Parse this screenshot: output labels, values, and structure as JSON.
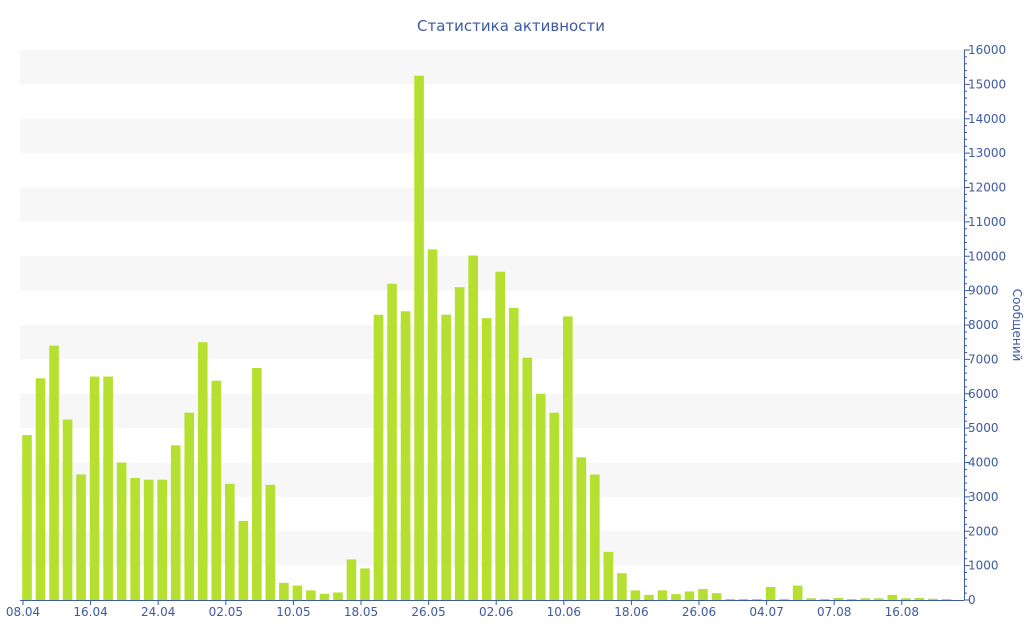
{
  "chart_data": {
    "type": "bar",
    "title": "Статистика активности",
    "ylabel": "Сообщений",
    "xlabel": "",
    "ylim": [
      0,
      16000
    ],
    "y_ticks": [
      "0",
      "1000",
      "2000",
      "3000",
      "4000",
      "5000",
      "6000",
      "7000",
      "8000",
      "9000",
      "10000",
      "11000",
      "12000",
      "13000",
      "14000",
      "15000",
      "16000"
    ],
    "x_tick_labels": [
      {
        "label": "08.04",
        "bar_index": 0
      },
      {
        "label": "16.04",
        "bar_index": 5
      },
      {
        "label": "24.04",
        "bar_index": 10
      },
      {
        "label": "02.05",
        "bar_index": 15
      },
      {
        "label": "10.05",
        "bar_index": 20
      },
      {
        "label": "18.05",
        "bar_index": 25
      },
      {
        "label": "26.05",
        "bar_index": 30
      },
      {
        "label": "02.06",
        "bar_index": 35
      },
      {
        "label": "10.06",
        "bar_index": 40
      },
      {
        "label": "18.06",
        "bar_index": 45
      },
      {
        "label": "26.06",
        "bar_index": 50
      },
      {
        "label": "04.07",
        "bar_index": 55
      },
      {
        "label": "07.08",
        "bar_index": 60
      },
      {
        "label": "16.08",
        "bar_index": 65
      }
    ],
    "values": [
      4800,
      6450,
      7400,
      5250,
      3650,
      6500,
      6500,
      4000,
      3550,
      3500,
      3500,
      4500,
      5450,
      7500,
      6380,
      3380,
      2300,
      6750,
      3350,
      500,
      420,
      280,
      180,
      220,
      1180,
      920,
      8300,
      9200,
      8400,
      15250,
      10200,
      8300,
      9100,
      10020,
      8200,
      9550,
      8500,
      7050,
      6000,
      5450,
      8250,
      4150,
      3650,
      1400,
      780,
      280,
      150,
      280,
      170,
      250,
      320,
      200,
      30,
      30,
      30,
      380,
      30,
      420,
      50,
      30,
      60,
      30,
      50,
      50,
      150,
      50,
      60,
      40,
      30
    ],
    "grid": true,
    "bar_color": "#b5e02f",
    "axis_color": "#3d5aa1",
    "band_color": "#f7f7f7"
  }
}
